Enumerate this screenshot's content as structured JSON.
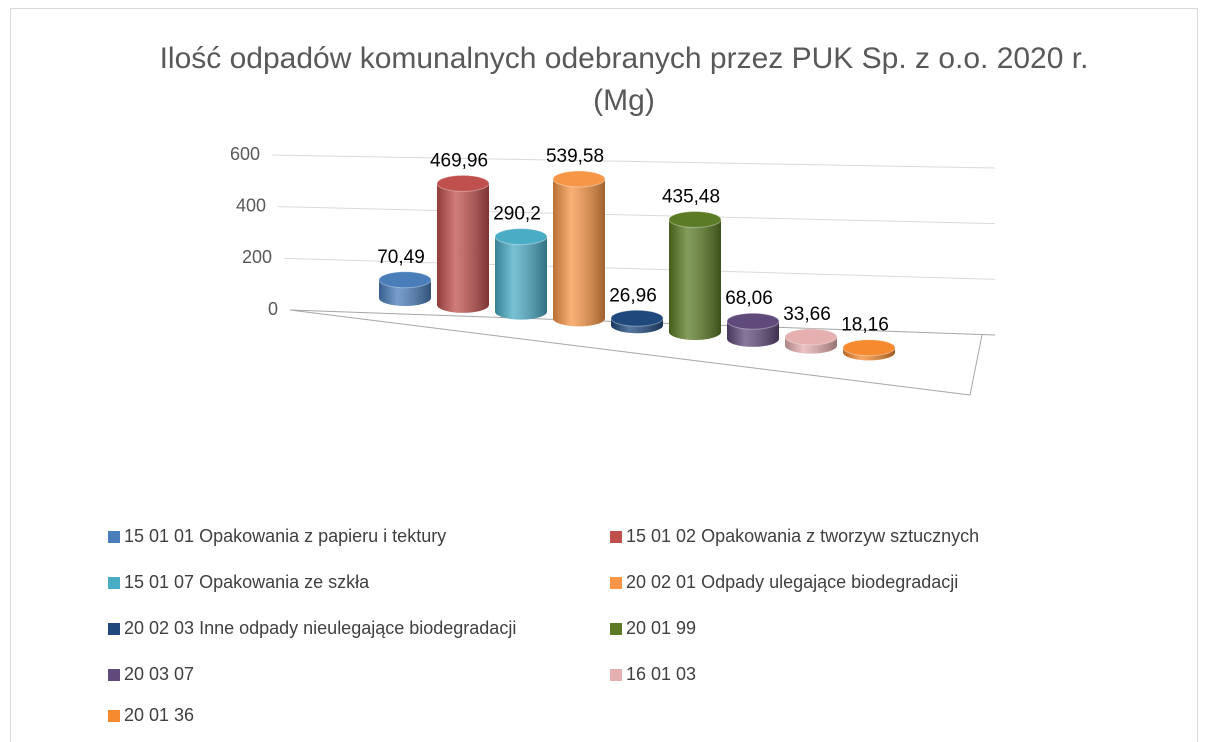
{
  "chart_data": {
    "type": "bar",
    "title": "Ilość odpadów komunalnych odebranych przez PUK Sp. z o.o. 2020 r. (Mg)",
    "ylim": [
      0,
      600
    ],
    "yticks": [
      0,
      200,
      400,
      600
    ],
    "grid": true,
    "legend": "bottom",
    "series": [
      {
        "name": "15 01 01 Opakowania z papieru i tektury",
        "color": "#4a7ebb",
        "values": [
          70.49
        ],
        "value_labels": [
          "70,49"
        ]
      },
      {
        "name": "15 01 02 Opakowania z tworzyw sztucznych",
        "color": "#c0504d",
        "values": [
          469.96
        ],
        "value_labels": [
          "469,96"
        ]
      },
      {
        "name": "15 01 07 Opakowania ze szkła",
        "color": "#4bacc6",
        "values": [
          290.2
        ],
        "value_labels": [
          "290,2"
        ]
      },
      {
        "name": "20 02 01 Odpady ulegające biodegradacji",
        "color": "#f79646",
        "values": [
          539.58
        ],
        "value_labels": [
          "539,58"
        ]
      },
      {
        "name": "20 02 03 Inne odpady nieulegające biodegradacji",
        "color": "#1f497d",
        "values": [
          26.96
        ],
        "value_labels": [
          "26,96"
        ]
      },
      {
        "name": "20 01 99",
        "color": "#5b7c25",
        "values": [
          435.48
        ],
        "value_labels": [
          "435,48"
        ]
      },
      {
        "name": "20 03 07",
        "color": "#604a7b",
        "values": [
          68.06
        ],
        "value_labels": [
          "68,06"
        ]
      },
      {
        "name": "16 01 03",
        "color": "#e6b0b0",
        "values": [
          33.66
        ],
        "value_labels": [
          "33,66"
        ]
      },
      {
        "name": "20 01 36",
        "color": "#f58a2e",
        "values": [
          18.16
        ],
        "value_labels": [
          "18,16"
        ]
      }
    ]
  }
}
